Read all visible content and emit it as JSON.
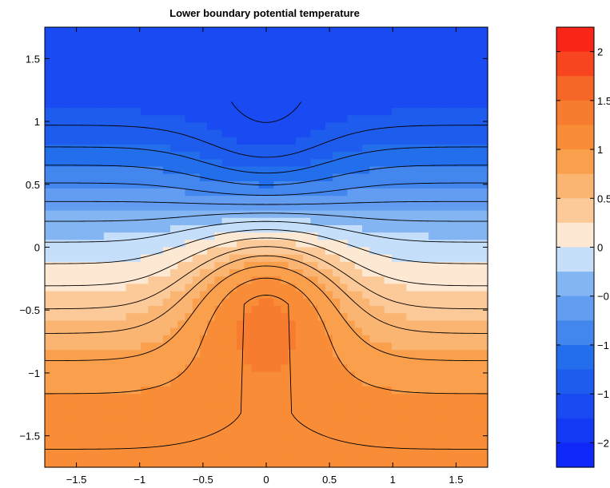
{
  "chart_data": {
    "type": "heatmap",
    "title": "Lower boundary potential temperature",
    "xlabel": "",
    "ylabel": "",
    "xlim": [
      -1.75,
      1.75
    ],
    "ylim": [
      -1.75,
      1.75
    ],
    "x_ticks": [
      -1.5,
      -1,
      -0.5,
      0,
      0.5,
      1,
      1.5
    ],
    "x_tick_labels": [
      "−1.5",
      "−1",
      "−0.5",
      "0",
      "0.5",
      "1",
      "1.5"
    ],
    "y_ticks": [
      1.5,
      1,
      0.5,
      0,
      -0.5,
      -1,
      -1.5
    ],
    "y_tick_labels": [
      "1.5",
      "1",
      "0.5",
      "0",
      "−0.5",
      "−1",
      "−1.5"
    ],
    "grid": false,
    "field": {
      "description_values": "theta(x,y) ≈ -1.25*y - 0.75*exp(-2.5*x^2)*(exp(-3*(y+0.25)^2) - 0.6*exp(-3*(y-0.65)^2)) + 0.2*y^3 - 0.35*(x^2)*(y+0.4)^2*0.0",
      "grid_n": 60,
      "contour_levels": [
        -2.0,
        -1.8,
        -1.6,
        -1.4,
        -1.2,
        -1.0,
        -0.8,
        -0.6,
        -0.4,
        -0.2,
        0.0,
        0.2,
        0.4,
        0.6,
        0.8,
        1.0,
        1.2,
        1.4,
        1.6,
        1.8,
        2.0
      ]
    },
    "colorbar": {
      "range": [
        -2.25,
        2.25
      ],
      "ticks": [
        2,
        1.5,
        1,
        0.5,
        0,
        -0.5,
        -1,
        -1.5,
        -2
      ],
      "tick_labels": [
        "2",
        "1.5",
        "1",
        "0.5",
        "0",
        "−0.5",
        "−1",
        "−1.5",
        "−2"
      ],
      "colormap": "blue-white-red"
    }
  }
}
